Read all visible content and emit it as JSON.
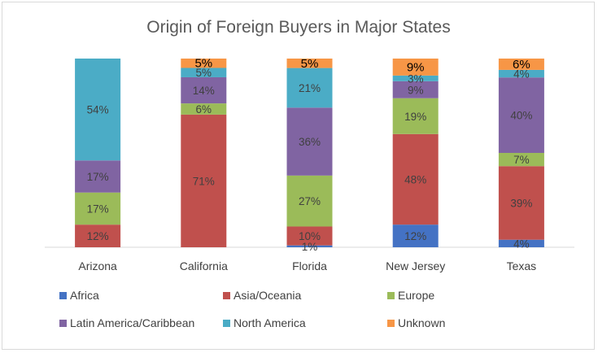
{
  "chart_data": {
    "type": "bar",
    "stacked": true,
    "title": "Origin of Foreign Buyers in Major States",
    "xlabel": "",
    "ylabel": "",
    "ylim": [
      0,
      100
    ],
    "grid": false,
    "legend_position": "bottom",
    "categories": [
      "Arizona",
      "California",
      "Florida",
      "New Jersey",
      "Texas"
    ],
    "series": [
      {
        "name": "Africa",
        "color": "#4472C4",
        "values": [
          0,
          0,
          1,
          12,
          4
        ],
        "labels": [
          "",
          "",
          "1%",
          "12%",
          "4%"
        ]
      },
      {
        "name": "Asia/Oceania",
        "color": "#C0504D",
        "values": [
          12,
          71,
          10,
          48,
          39
        ],
        "labels": [
          "12%",
          "71%",
          "10%",
          "48%",
          "39%"
        ]
      },
      {
        "name": "Europe",
        "color": "#9BBB59",
        "values": [
          17,
          6,
          27,
          19,
          7
        ],
        "labels": [
          "17%",
          "6%",
          "27%",
          "19%",
          "7%"
        ]
      },
      {
        "name": "Latin America/Caribbean",
        "color": "#8064A2",
        "values": [
          17,
          14,
          36,
          9,
          40
        ],
        "labels": [
          "17%",
          "14%",
          "36%",
          "9%",
          "40%"
        ]
      },
      {
        "name": "North America",
        "color": "#4BACC6",
        "values": [
          54,
          5,
          21,
          3,
          4
        ],
        "labels": [
          "54%",
          "5%",
          "21%",
          "3%",
          "4%"
        ]
      },
      {
        "name": "Unknown",
        "color": "#F79646",
        "values": [
          0,
          5,
          5,
          9,
          6
        ],
        "labels": [
          "",
          "5%",
          "5%",
          "9%",
          "6%"
        ]
      }
    ]
  }
}
